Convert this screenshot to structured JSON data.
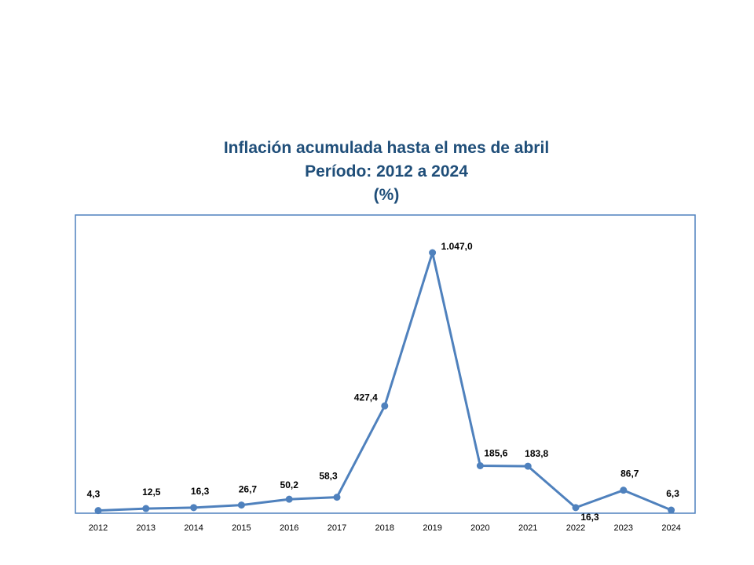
{
  "chart_data": {
    "type": "line",
    "title": [
      "Inflación acumulada hasta el mes de abril",
      "Período: 2012 a 2024",
      "(%)"
    ],
    "xlabel": "",
    "ylabel": "",
    "ylim": [
      0,
      1100
    ],
    "grid": false,
    "legend": "none",
    "categories": [
      "2012",
      "2013",
      "2014",
      "2015",
      "2016",
      "2017",
      "2018",
      "2019",
      "2020",
      "2021",
      "2022",
      "2023",
      "2024"
    ],
    "values": [
      4.3,
      12.5,
      16.3,
      26.7,
      50.2,
      58.3,
      427.4,
      1047.0,
      185.6,
      183.8,
      16.3,
      86.7,
      6.3
    ],
    "data_labels": [
      "4,3",
      "12,5",
      "16,3",
      "26,7",
      "50,2",
      "58,3",
      "427,4",
      "1.047,0",
      "185,6",
      "183,8",
      "16,3",
      "86,7",
      "6,3"
    ],
    "colors": {
      "line": "#4F81BD",
      "frame": "#4F81BD",
      "title": "#1F4E79"
    }
  }
}
